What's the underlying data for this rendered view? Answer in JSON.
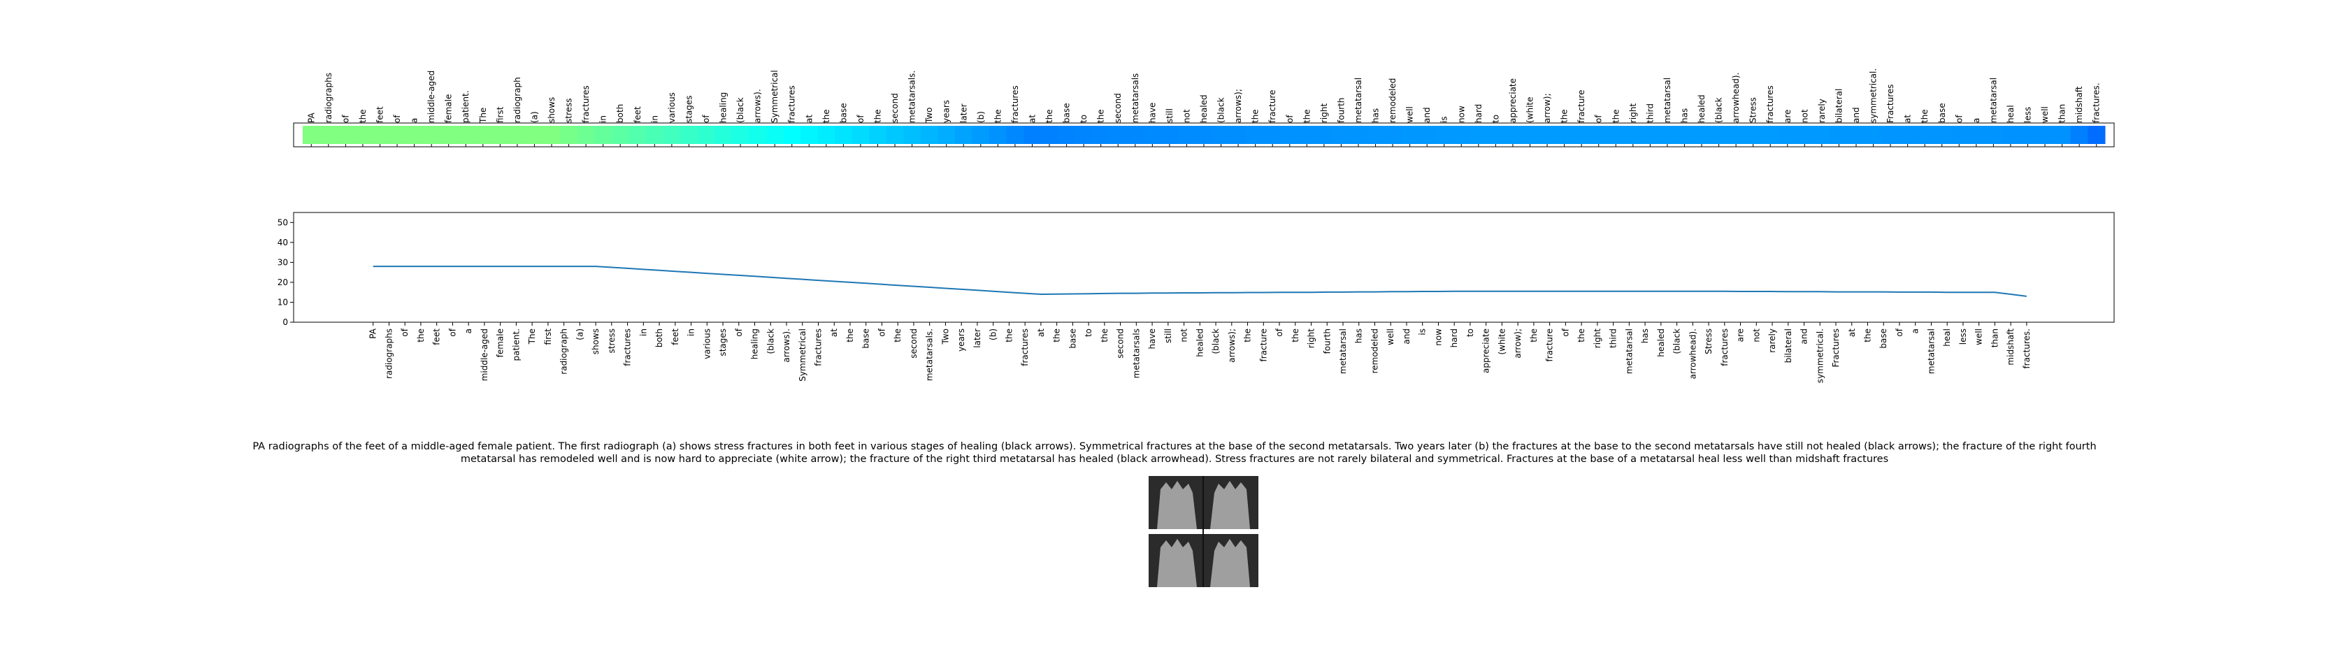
{
  "chart_data": {
    "type": "line",
    "categories": [
      "PA",
      "radiographs",
      "of",
      "the",
      "feet",
      "of",
      "a",
      "middle-aged",
      "female",
      "patient.",
      "The",
      "first",
      "radiograph",
      "(a)",
      "shows",
      "stress",
      "fractures",
      "in",
      "both",
      "feet",
      "in",
      "various",
      "stages",
      "of",
      "healing",
      "(black",
      "arrows).",
      "Symmetrical",
      "fractures",
      "at",
      "the",
      "base",
      "of",
      "the",
      "second",
      "metatarsals.",
      "Two",
      "years",
      "later",
      "(b)",
      "the",
      "fractures",
      "at",
      "the",
      "base",
      "to",
      "the",
      "second",
      "metatarsals",
      "have",
      "still",
      "not",
      "healed",
      "(black",
      "arrows);",
      "the",
      "fracture",
      "of",
      "the",
      "right",
      "fourth",
      "metatarsal",
      "has",
      "remodeled",
      "well",
      "and",
      "is",
      "now",
      "hard",
      "to",
      "appreciate",
      "(white",
      "arrow);",
      "the",
      "fracture",
      "of",
      "the",
      "right",
      "third",
      "metatarsal",
      "has",
      "healed",
      "(black",
      "arrowhead).",
      "Stress",
      "fractures",
      "are",
      "not",
      "rarely",
      "bilateral",
      "and",
      "symmetrical.",
      "Fractures",
      "at",
      "the",
      "base",
      "of",
      "a",
      "metatarsal",
      "heal",
      "less",
      "well",
      "than",
      "midshaft",
      "fractures."
    ],
    "series": [
      {
        "color": "#1f77b4",
        "values": [
          28,
          28,
          28,
          28,
          28,
          28,
          28,
          28,
          28,
          28,
          28,
          28,
          28,
          28,
          28,
          27.5,
          27,
          26.5,
          26,
          25.5,
          25,
          24.5,
          24,
          23.5,
          23,
          22.5,
          22,
          21.5,
          21,
          20.5,
          20,
          19.5,
          19,
          18.5,
          18,
          17.5,
          17,
          16.5,
          16,
          15.5,
          15,
          14.5,
          14,
          14.1,
          14.2,
          14.3,
          14.4,
          14.5,
          14.5,
          14.6,
          14.6,
          14.7,
          14.7,
          14.8,
          14.8,
          14.9,
          14.9,
          15,
          15,
          15,
          15.1,
          15.1,
          15.2,
          15.2,
          15.3,
          15.3,
          15.4,
          15.4,
          15.5,
          15.5,
          15.5,
          15.5,
          15.5,
          15.5,
          15.5,
          15.5,
          15.5,
          15.5,
          15.5,
          15.5,
          15.5,
          15.5,
          15.5,
          15.5,
          15.5,
          15.5,
          15.4,
          15.4,
          15.4,
          15.3,
          15.3,
          15.3,
          15.2,
          15.2,
          15.2,
          15.2,
          15.1,
          15.1,
          15.1,
          15,
          15,
          15,
          15,
          14,
          13
        ]
      }
    ],
    "ylim": [
      0,
      55
    ],
    "yticks": [
      0,
      10,
      20,
      30,
      40,
      50
    ],
    "heatmap": {
      "colormap": "jet",
      "clim": [
        0,
        56
      ]
    },
    "caption": "PA radiographs of the feet of a middle-aged female patient. The first radiograph (a) shows stress fractures in both feet in various stages of healing (black arrows). Symmetrical fractures at the base of the second metatarsals. Two years later (b) the fractures at the base to the second metatarsals have still not healed (black arrows); the fracture of the right fourth metatarsal has remodeled well and is now hard to appreciate (white arrow); the fracture of the right third metatarsal has healed (black arrowhead). Stress fractures are not rarely bilateral and symmetrical. Fractures at the base of a metatarsal heal less well than midshaft fractures"
  }
}
